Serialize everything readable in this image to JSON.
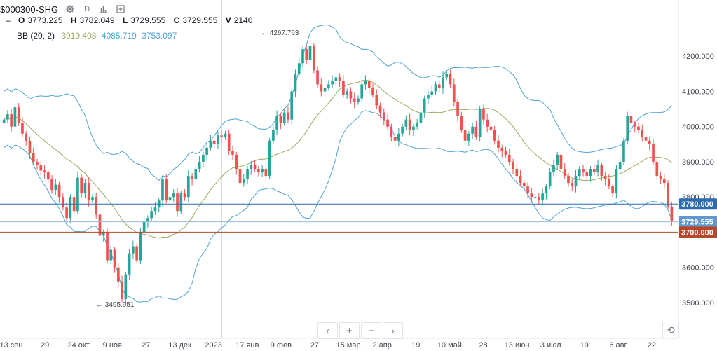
{
  "header": {
    "symbol": "$000300-SHG",
    "interval": "D",
    "ohlc": {
      "o_label": "O",
      "o": "3773.225",
      "h_label": "H",
      "h": "3782.049",
      "l_label": "L",
      "l": "3729.555",
      "c_label": "C",
      "c": "3729.555",
      "v_label": "V",
      "v": "2140"
    },
    "bb_label": "BB (20, 2)",
    "bb_mid": "3919.408",
    "bb_upper": "4085.719",
    "bb_lower": "3753.097"
  },
  "colors": {
    "up": "#26a69a",
    "down": "#ef5350",
    "bb_mid": "#9aab62",
    "bb_band": "#4fa3d6",
    "hline_blue": "#2b6cb0",
    "hline_red": "#b7472a",
    "price_tag_light": "#5f98cf"
  },
  "chart_data": {
    "type": "candlestick",
    "y_axis": {
      "min": 3450,
      "max": 4300,
      "ticks": [
        3500,
        3600,
        3700,
        3800,
        3900,
        4000,
        4100,
        4200
      ],
      "tick_labels": [
        "3500.000",
        "3600.000",
        "3700.000",
        "3800.000",
        "3900.000",
        "4000.000",
        "4100.000",
        "4200.000"
      ]
    },
    "x_tick_labels": [
      "13 сен",
      "29",
      "24 окт",
      "9 ноя",
      "27",
      "13 дек",
      "2023",
      "17 янв",
      "9 фев",
      "27",
      "15 мар",
      "2 апр",
      "19",
      "10 май",
      "28",
      "13 июн",
      "3 июл",
      "19",
      "6 авг",
      "22"
    ],
    "closes": [
      4020,
      4035,
      4000,
      4055,
      4010,
      3980,
      3960,
      3925,
      3900,
      3890,
      3875,
      3870,
      3850,
      3820,
      3835,
      3800,
      3770,
      3740,
      3800,
      3760,
      3855,
      3810,
      3840,
      3790,
      3800,
      3750,
      3690,
      3700,
      3620,
      3650,
      3600,
      3560,
      3510,
      3580,
      3640,
      3660,
      3620,
      3700,
      3730,
      3740,
      3760,
      3770,
      3790,
      3850,
      3790,
      3800,
      3810,
      3760,
      3810,
      3800,
      3860,
      3850,
      3880,
      3900,
      3920,
      3940,
      3960,
      3950,
      3975,
      3970,
      3980,
      3930,
      3920,
      3880,
      3840,
      3850,
      3880,
      3890,
      3880,
      3870,
      3880,
      3860,
      3960,
      3990,
      4030,
      4010,
      4040,
      4020,
      4100,
      4150,
      4180,
      4220,
      4190,
      4230,
      4160,
      4120,
      4100,
      4110,
      4120,
      4130,
      4140,
      4130,
      4090,
      4100,
      4080,
      4070,
      4080,
      4120,
      4130,
      4110,
      4090,
      4060,
      4040,
      4020,
      4000,
      3970,
      3960,
      3980,
      4000,
      4020,
      3990,
      4000,
      4010,
      4040,
      4080,
      4090,
      4100,
      4120,
      4110,
      4140,
      4150,
      4120,
      4070,
      4030,
      3990,
      3960,
      3980,
      4000,
      3970,
      4050,
      4020,
      4000,
      3990,
      3960,
      3940,
      3930,
      3920,
      3900,
      3880,
      3860,
      3840,
      3830,
      3810,
      3800,
      3800,
      3790,
      3810,
      3830,
      3870,
      3890,
      3920,
      3880,
      3860,
      3840,
      3830,
      3860,
      3880,
      3870,
      3860,
      3880,
      3870,
      3890,
      3860,
      3850,
      3830,
      3810,
      3880,
      3900,
      3960,
      4030,
      4010,
      4000,
      3990,
      3970,
      3960,
      3950,
      3900,
      3860,
      3850,
      3840,
      3773,
      3730
    ],
    "annotations": [
      {
        "text": "← 4267.763",
        "value": 4267.763
      },
      {
        "text": "← 3495.951",
        "value": 3495.951
      }
    ],
    "bollinger": {
      "period": 20,
      "stddev": 2
    },
    "horizontal_lines": [
      {
        "label": "3780.000",
        "value": 3780
      },
      {
        "label": "3729.555",
        "value": 3729.555
      },
      {
        "label": "3700.000",
        "value": 3700
      }
    ],
    "crosshair_x_label": "2023"
  },
  "nav": {
    "left": "‹",
    "zoom_in": "+",
    "zoom_out": "−",
    "right": "›",
    "reset": "⟲"
  }
}
